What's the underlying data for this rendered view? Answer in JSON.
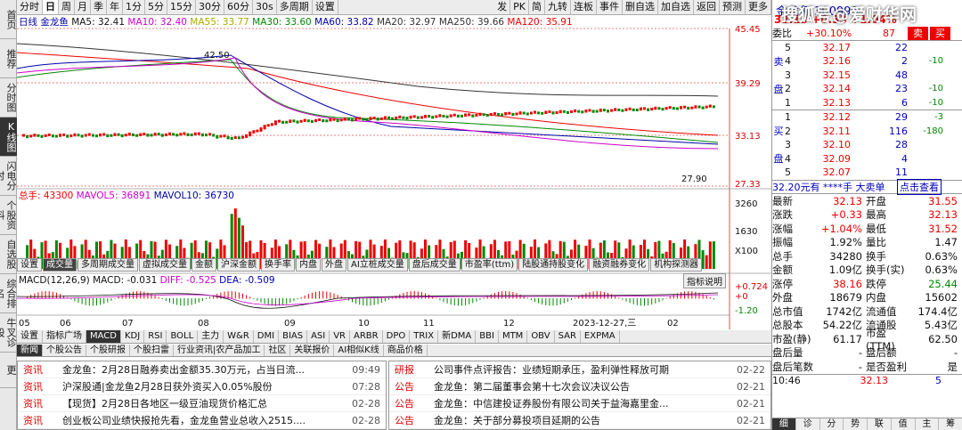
{
  "sidebar": [
    "首页",
    "推荐",
    "分时图",
    "K线图",
    "闪电分时",
    "个股资料",
    "自选股",
    "综合排名",
    "牛叉诊股",
    "更"
  ],
  "toolbar": [
    "分时",
    "日",
    "周",
    "月",
    "季",
    "年",
    "1分",
    "5分",
    "15分",
    "30分",
    "60分",
    "30s",
    "多周期",
    "设置"
  ],
  "toolbar_right": [
    "发",
    "PK",
    "简",
    "九转",
    "连板",
    "事件",
    "删自选",
    "加自选",
    "返回",
    "预测",
    "更多"
  ],
  "ma_line": {
    "label": "日线",
    "name": "金龙鱼",
    "ma5": "MA5: 32.41",
    "ma10": "MA10: 32.40",
    "ma55": "MA55: 33.77",
    "ma30": "MA30: 33.60",
    "ma60": "MA60: 33.82",
    "ma20": "MA20: 32.97",
    "ma250": "MA250: 39.66",
    "ma120": "MA120: 35.91"
  },
  "price_axis": [
    "45.45",
    "39.29",
    "33.13",
    "27.33"
  ],
  "price_marks": {
    "high": "42.50",
    "low": "27.90"
  },
  "vol_line": {
    "label": "总手: 43300",
    "mavol5": "MAVOL5: 36891",
    "mavol10": "MAVOL10: 36730"
  },
  "vol_axis": [
    "3260",
    "1630",
    "X100"
  ],
  "ind_tabs": [
    "设置",
    "成交量",
    "多周期成交量",
    "虚拟成交量",
    "金额",
    "沪深金额",
    "换手率",
    "内盘",
    "外盘",
    "AI立桩成交量",
    "盘后成交量",
    "市盈率(ttm)",
    "陆股通持股变化",
    "融资融券变化",
    "机构探测器"
  ],
  "macd_line": {
    "label": "MACD(12,26,9)",
    "macd": "MACD: -0.031",
    "diff": "DIFF: -0.525",
    "dea": "DEA: -0.509"
  },
  "macd_axis": [
    "+0.724",
    "+0",
    "-1.20"
  ],
  "macd_help": "指标说明",
  "date_axis": [
    "05",
    "06",
    "07",
    "08",
    "09",
    "10",
    "11",
    "12",
    "2023-12-27,三",
    "02"
  ],
  "bottom_tabs": [
    "设置",
    "指标广场",
    "MACD",
    "KDJ",
    "RSI",
    "BOLL",
    "主力",
    "W&R",
    "DMI",
    "BIAS",
    "ASI",
    "VR",
    "ARBR",
    "DPO",
    "TRIX",
    "新DMA",
    "BBI",
    "MTM",
    "OBV",
    "SAR",
    "EXPMA"
  ],
  "news_left": [
    {
      "cat": "资讯",
      "title": "金龙鱼：2月28日融券卖出金额35.30万元，占当日流...",
      "time": "09:49"
    },
    {
      "cat": "资讯",
      "title": "沪深股通|金龙鱼2月28日获外资买入0.05%股份",
      "time": "07:28"
    },
    {
      "cat": "资讯",
      "title": "【现货】2月28日各地区一级豆油现货价格汇总",
      "time": "02-28"
    },
    {
      "cat": "资讯",
      "title": "创业板公司业绩快报抢先看，金龙鱼营业总收入2515....",
      "time": "02-28"
    }
  ],
  "news_right": [
    {
      "cat": "研报",
      "title": "公司事件点评报告：业绩短期承压，盈利弹性释放可期",
      "time": "02-22"
    },
    {
      "cat": "公告",
      "title": "金龙鱼：第二届董事会第十七次会议决议公告",
      "time": "02-21"
    },
    {
      "cat": "公告",
      "title": "金龙鱼：中信建投证券股份有限公司关于益海嘉里金...",
      "time": "02-21"
    },
    {
      "cat": "公告",
      "title": "金龙鱼：关于部分募投项目延期的公告",
      "time": "02-21"
    }
  ],
  "news_tabs": [
    "新闻",
    "个股公告",
    "个股研报",
    "个股扫雷",
    "行业资讯|农产品加工",
    "社区",
    "关联报价",
    "AI相似K线",
    "商品价格"
  ],
  "quote": {
    "name": "金龙鱼",
    "code": "300999",
    "price": "32.13",
    "change": "+0.33",
    "pct": "+1.04%",
    "wb_label": "委比",
    "wb": "+30.10%",
    "wc": "87",
    "sell": "卖",
    "buy": "买",
    "asks": [
      [
        "5",
        "32.17",
        "22",
        ""
      ],
      [
        "4",
        "32.16",
        "2",
        "-10"
      ],
      [
        "3",
        "32.15",
        "48",
        ""
      ],
      [
        "2",
        "32.14",
        "23",
        "-10"
      ],
      [
        "1",
        "32.13",
        "6",
        "-10"
      ]
    ],
    "bids": [
      [
        "1",
        "32.12",
        "29",
        "-3"
      ],
      [
        "2",
        "32.11",
        "116",
        "-180"
      ],
      [
        "3",
        "32.10",
        "28",
        ""
      ],
      [
        "4",
        "32.09",
        "4",
        ""
      ],
      [
        "5",
        "32.07",
        "11",
        ""
      ]
    ],
    "ask_label": "卖盘",
    "bid_label": "买盘",
    "big_order": "32.20元有 ****手 大卖单",
    "big_btn": "点击查看",
    "stats": [
      [
        "最新",
        "32.13",
        "开盘",
        "31.55"
      ],
      [
        "涨跌",
        "+0.33",
        "最高",
        "32.13"
      ],
      [
        "涨幅",
        "+1.04%",
        "最低",
        "31.52"
      ],
      [
        "振幅",
        "1.92%",
        "量比",
        "1.47"
      ],
      [
        "总手",
        "34280",
        "换手",
        "0.63%"
      ],
      [
        "金额",
        "1.09亿",
        "换手(实)",
        "0.63%"
      ],
      [
        "涨停",
        "38.16",
        "跌停",
        "25.44"
      ],
      [
        "外盘",
        "18679",
        "内盘",
        "15602"
      ],
      [
        "总市值",
        "1742亿",
        "流通值",
        "174.4亿"
      ],
      [
        "总股本",
        "54.22亿",
        "流通股",
        "5.43亿"
      ],
      [
        "市盈(静)",
        "61.17",
        "市盈(TTM)",
        "62.50"
      ],
      [
        "盘后量",
        "-",
        "盘后额",
        "-"
      ],
      [
        "盘后笔数",
        "-",
        "是否盈利",
        "是"
      ]
    ],
    "last_tick": {
      "time": "10:46",
      "price": "32.13",
      "vol": "5"
    },
    "tabs": [
      "细",
      "诊",
      "分",
      "势",
      "联",
      "值",
      "主",
      "筹"
    ]
  },
  "watermark": "搜狐号@爱财华网"
}
